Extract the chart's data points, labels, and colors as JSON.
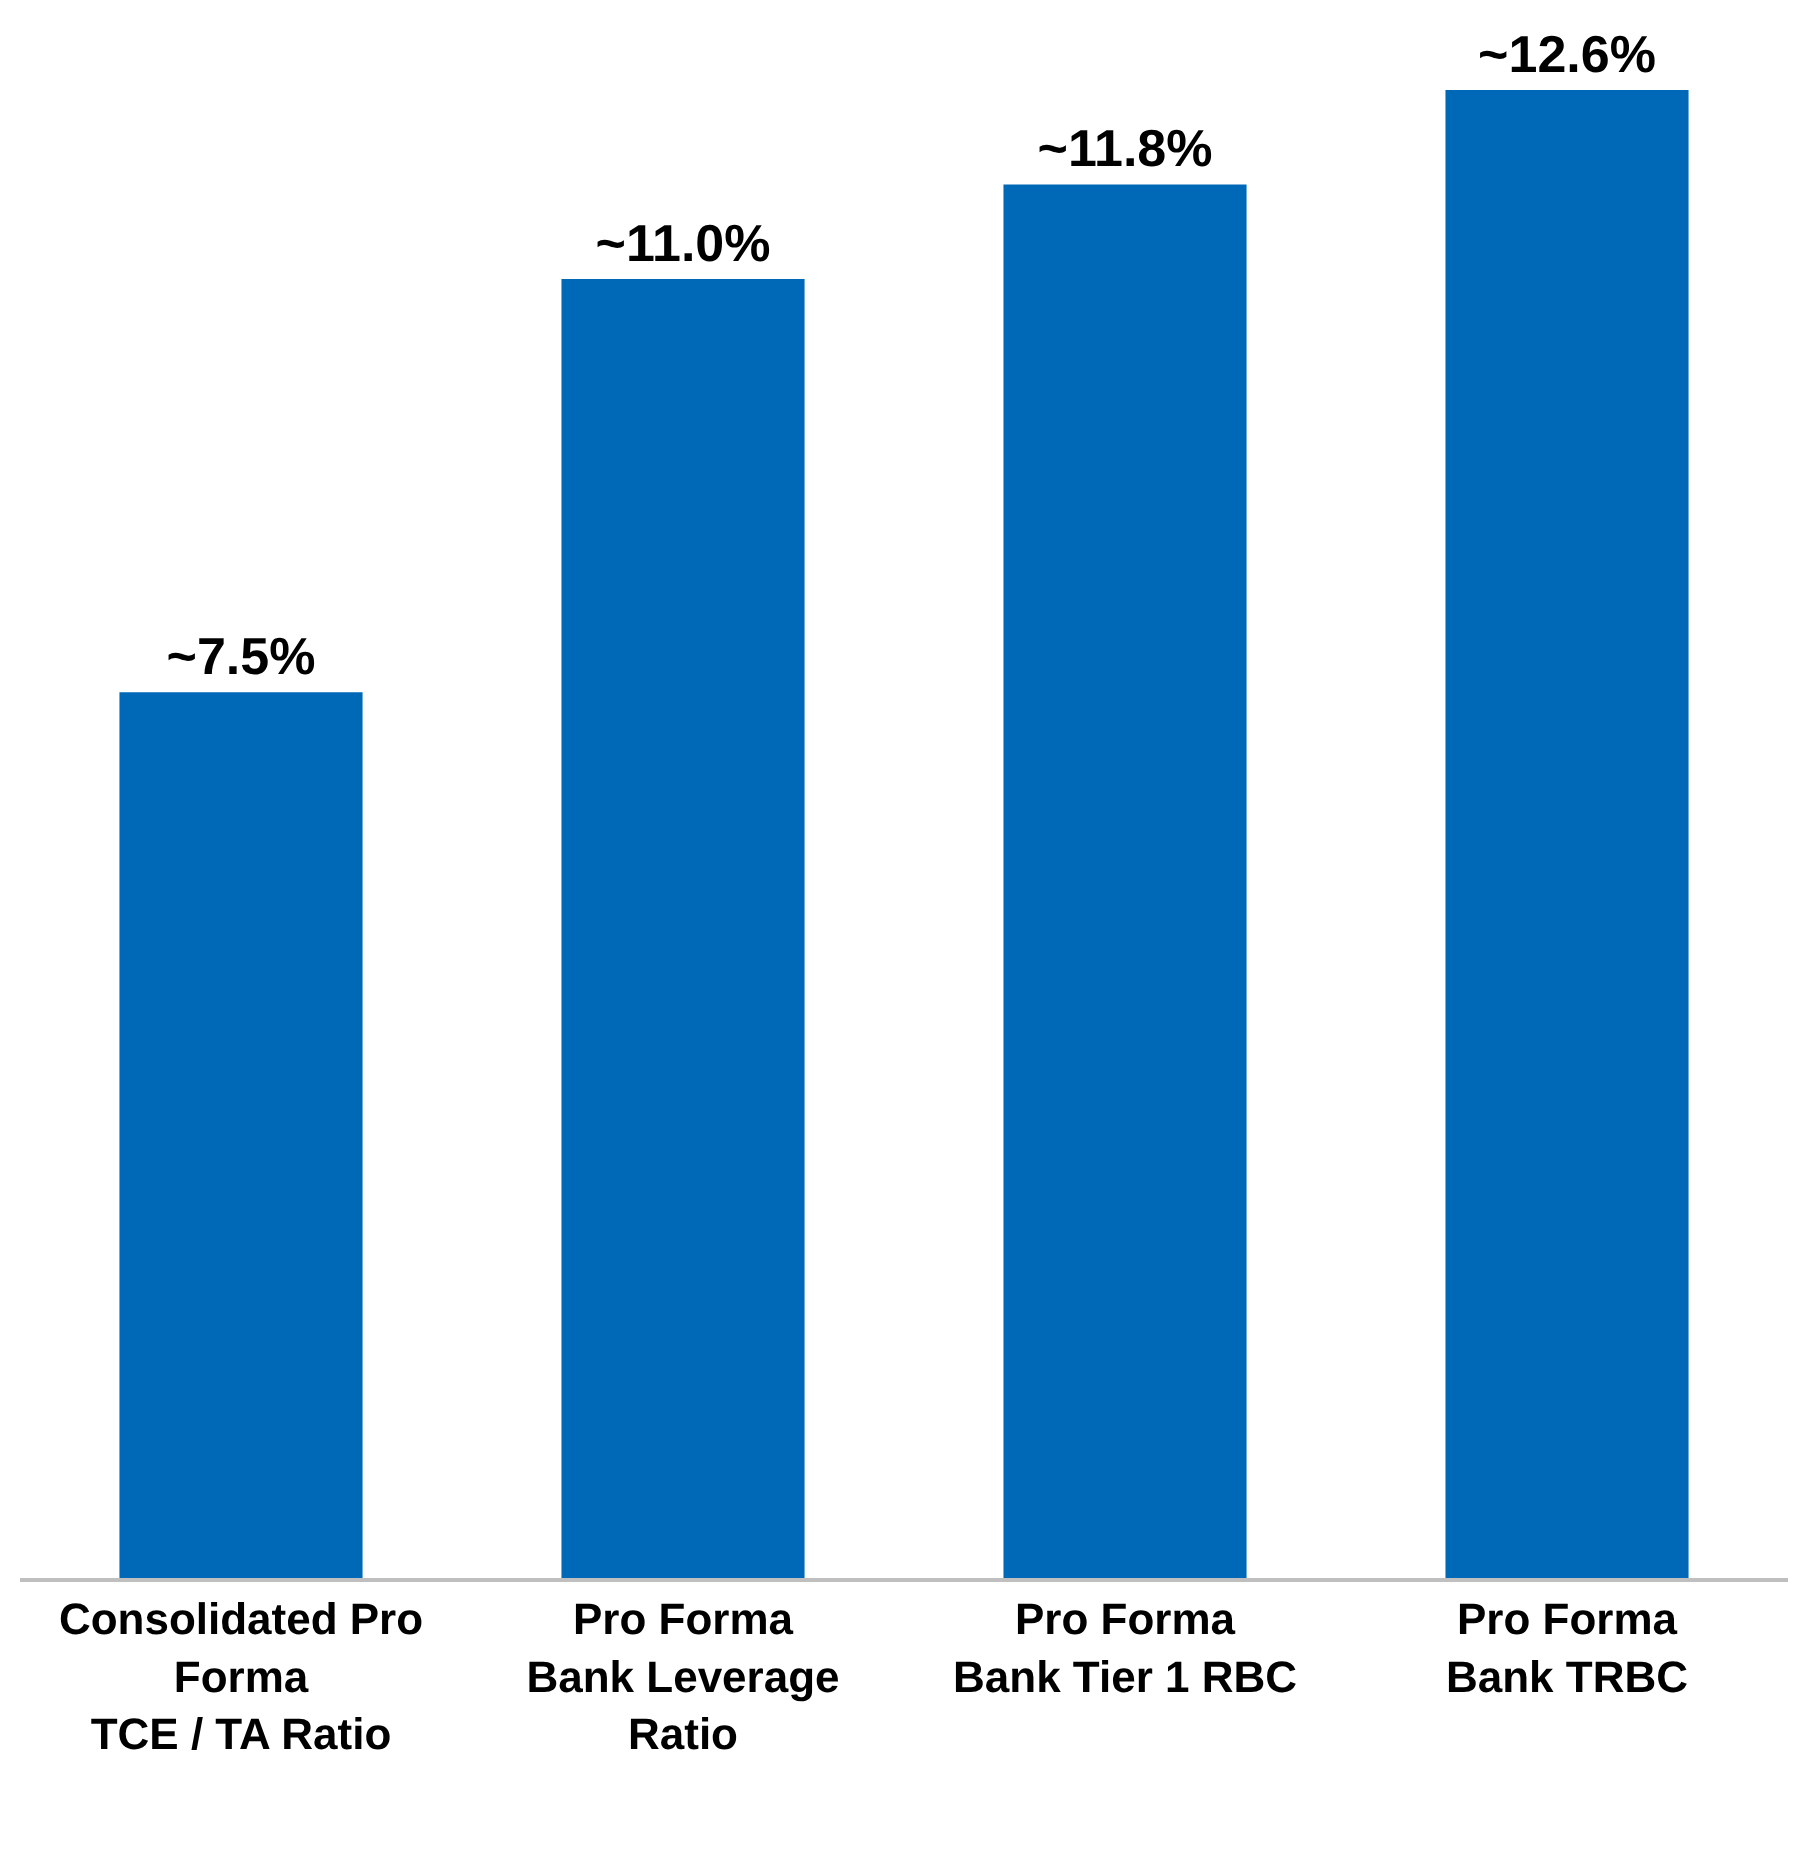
{
  "chart_data": {
    "type": "bar",
    "categories": [
      "Consolidated Pro\nForma\nTCE / TA Ratio",
      "Pro Forma\nBank Leverage\nRatio",
      "Pro Forma\nBank Tier 1 RBC",
      "Pro Forma\nBank TRBC"
    ],
    "series": [
      {
        "color": "#0069b7",
        "values": [
          7.5,
          11.0,
          11.8,
          12.6
        ],
        "value_labels": [
          "~7.5%",
          "~11.0%",
          "~11.8%",
          "~12.6%"
        ]
      }
    ],
    "tick_labels": "x"
  }
}
